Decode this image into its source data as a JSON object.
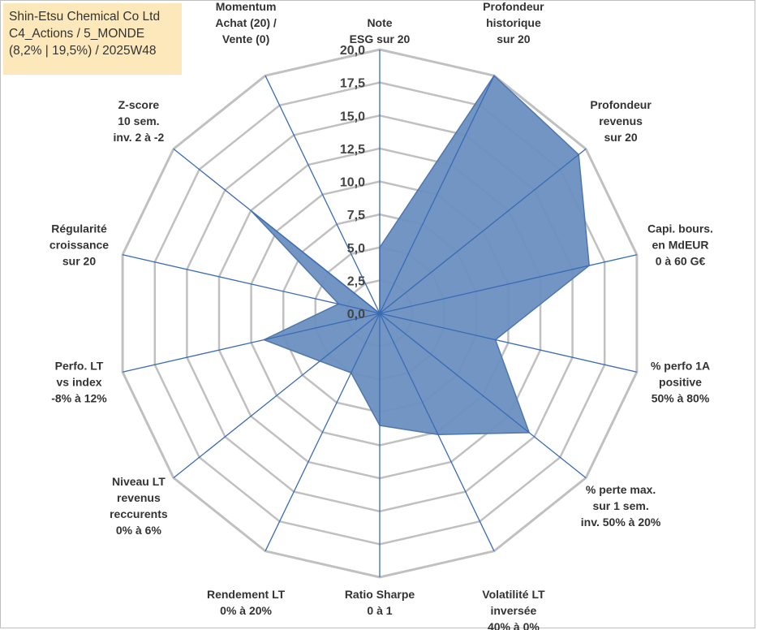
{
  "info_box": {
    "line1": "Shin-Etsu Chemical Co Ltd",
    "line2": "C4_Actions / 5_MONDE",
    "line3": "(8,2% | 19,5%) / 2025W48"
  },
  "chart_data": {
    "type": "radar",
    "title": "",
    "range": [
      0,
      20
    ],
    "ticks": [
      "0,0",
      "2,5",
      "5,0",
      "7,5",
      "10,0",
      "12,5",
      "15,0",
      "17,5",
      "20,0"
    ],
    "axes": [
      [
        "Note",
        "ESG sur 20"
      ],
      [
        "Profondeur",
        "historique",
        "sur 20"
      ],
      [
        "Profondeur",
        "revenus",
        "sur 20"
      ],
      [
        "Capi. bours.",
        "en MdEUR",
        "0 à 60 G€"
      ],
      [
        "% perfo 1A",
        "positive",
        "50% à 80%"
      ],
      [
        "% perte max.",
        "sur 1 sem.",
        "inv. 50% à 20%"
      ],
      [
        "Volatilité LT",
        "inversée",
        "40% à 0%"
      ],
      [
        "Ratio Sharpe",
        "0 à 1"
      ],
      [
        "Rendement LT",
        "0% à 20%"
      ],
      [
        "Niveau LT",
        "revenus",
        "reccurents",
        "0% à 6%"
      ],
      [
        "Perfo. LT",
        "vs index",
        "-8% à 12%"
      ],
      [
        "Régularité",
        "croissance",
        "sur 20"
      ],
      [
        "Z-score",
        "10 sem.",
        "inv. 2 à -2"
      ],
      [
        "Momentum",
        "Achat (20) /",
        "Vente (0)"
      ]
    ],
    "series": [
      {
        "name": "Shin-Etsu Chemical Co Ltd",
        "values": [
          5.0,
          20.0,
          19.3,
          16.3,
          9.0,
          14.5,
          10.2,
          8.5,
          5.0,
          5.8,
          9.0,
          3.2,
          12.5,
          0.0
        ],
        "fill": "#6a8fc0",
        "stroke": "#4e77ad"
      }
    ],
    "grid_color": "#c0c0c0",
    "axis_color": "#3a6bb5"
  }
}
